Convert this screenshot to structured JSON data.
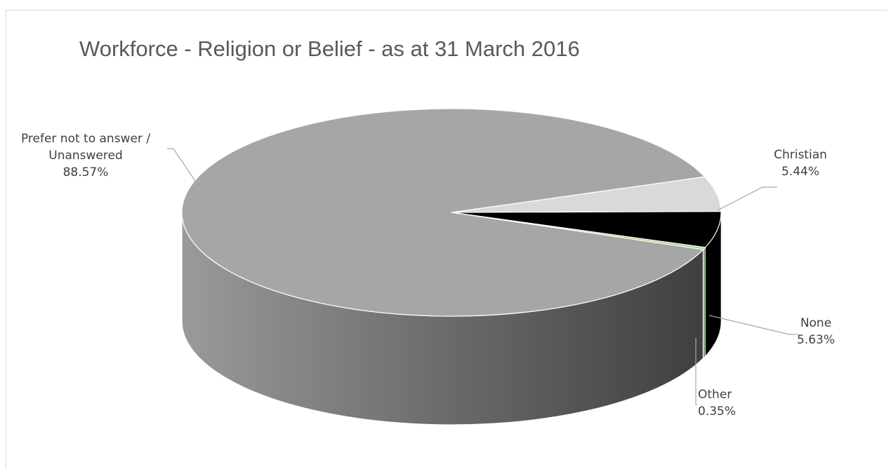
{
  "chart_data": {
    "type": "pie",
    "title": "Workforce - Religion or Belief - as at 31 March 2016",
    "slices": [
      {
        "label": "Christian",
        "value": 5.44,
        "value_label": "5.44%",
        "color": "#d9d9d9"
      },
      {
        "label": "None",
        "value": 5.63,
        "value_label": "5.63%",
        "color": "#000000"
      },
      {
        "label": "Other",
        "value": 0.35,
        "value_label": "0.35%",
        "color": "#a9d18e"
      },
      {
        "label_lines": [
          "Prefer not to answer /",
          "Unanswered"
        ],
        "label": "Prefer not to answer / Unanswered",
        "value": 88.57,
        "value_label": "88.57%",
        "color": "#a6a6a6"
      }
    ],
    "style": "3d"
  }
}
